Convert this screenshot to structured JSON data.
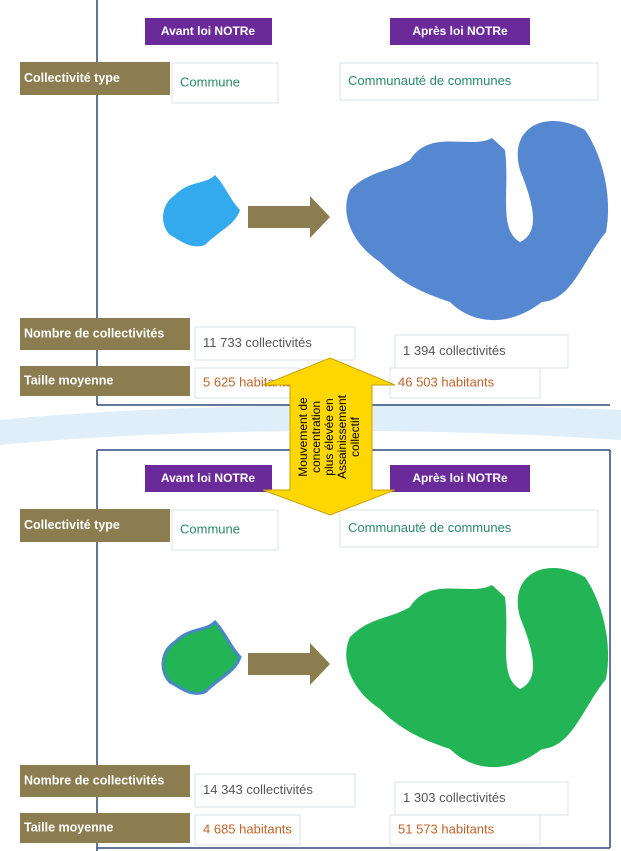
{
  "panels": [
    {
      "before_header": "Avant loi NOTRe",
      "after_header": "Après loi NOTRe",
      "rows": [
        {
          "label": "Collectivité type",
          "before": "Commune",
          "after": "Communauté de communes"
        },
        {
          "label": "Nombre de collectivités",
          "before": "11 733 collectivités",
          "after": "1 394 collectivités"
        },
        {
          "label": "Taille moyenne",
          "before": "5 625 habitants",
          "after": "46 503 habitants"
        }
      ]
    },
    {
      "before_header": "Avant loi NOTRe",
      "after_header": "Après loi NOTRe",
      "rows": [
        {
          "label": "Collectivité type",
          "before": "Commune",
          "after": "Communauté de communes"
        },
        {
          "label": "Nombre de collectivités",
          "before": "14 343 collectivités",
          "after": "1 303 collectivités"
        },
        {
          "label": "Taille moyenne",
          "before": "4 685 habitants",
          "after": "51 573 habitants"
        }
      ]
    }
  ],
  "callout": {
    "lines": [
      "Mouvement de",
      "concentration",
      "plus élevée en",
      "Assainissement",
      "collectif"
    ]
  }
}
